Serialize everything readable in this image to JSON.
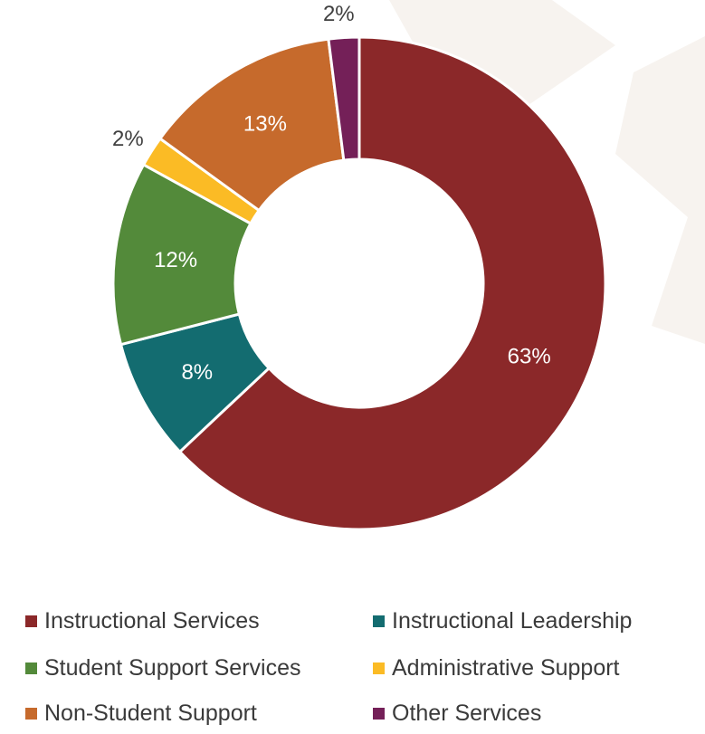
{
  "chart_data": {
    "type": "pie",
    "style": "donut",
    "title": "",
    "legend_position": "bottom",
    "slices": [
      {
        "name": "Instructional Services",
        "value": 63,
        "label": "63%",
        "color": "#8b2829"
      },
      {
        "name": "Instructional Leadership",
        "value": 8,
        "label": "8%",
        "color": "#136c70"
      },
      {
        "name": "Student Support Services",
        "value": 12,
        "label": "12%",
        "color": "#538a3a"
      },
      {
        "name": "Administrative Support",
        "value": 2,
        "label": "2%",
        "color": "#fbbb25"
      },
      {
        "name": "Non-Student Support",
        "value": 13,
        "label": "13%",
        "color": "#c66a2c"
      },
      {
        "name": "Other Services",
        "value": 2,
        "label": "2%",
        "color": "#742058"
      }
    ],
    "legend": [
      {
        "label": "Instructional Services",
        "color": "#8b2829"
      },
      {
        "label": "Instructional Leadership",
        "color": "#136c70"
      },
      {
        "label": "Student Support Services",
        "color": "#538a3a"
      },
      {
        "label": "Administrative Support",
        "color": "#fbbb25"
      },
      {
        "label": "Non-Student Support",
        "color": "#c66a2c"
      },
      {
        "label": "Other Services",
        "color": "#742058"
      }
    ]
  }
}
